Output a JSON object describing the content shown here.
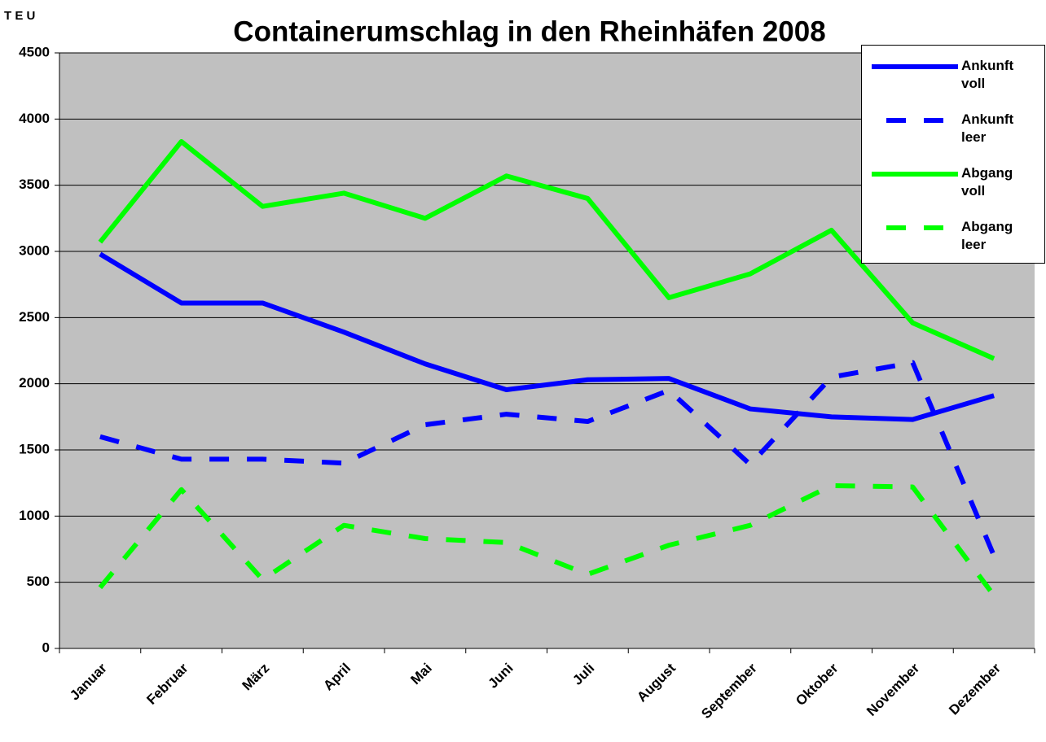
{
  "chart_data": {
    "type": "line",
    "title": "Containerumschlag in den Rheinhäfen 2008",
    "y_label": "T E U",
    "categories": [
      "Januar",
      "Februar",
      "März",
      "April",
      "Mai",
      "Juni",
      "Juli",
      "August",
      "September",
      "Oktober",
      "November",
      "Dezember"
    ],
    "series": [
      {
        "name": "Ankunft voll",
        "color": "#0000ff",
        "style": "solid",
        "values": [
          2980,
          2610,
          2610,
          2390,
          2150,
          1955,
          2030,
          2040,
          1810,
          1750,
          1730,
          1910
        ]
      },
      {
        "name": "Ankunft leer",
        "color": "#0000ff",
        "style": "dashed",
        "values": [
          1600,
          1430,
          1430,
          1400,
          1690,
          1770,
          1715,
          1950,
          1390,
          2050,
          2160,
          700
        ]
      },
      {
        "name": "Abgang voll",
        "color": "#00ff00",
        "style": "solid",
        "values": [
          3070,
          3830,
          3340,
          3440,
          3250,
          3570,
          3400,
          2650,
          2830,
          3160,
          2460,
          2190
        ]
      },
      {
        "name": "Abgang leer",
        "color": "#00ff00",
        "style": "dashed",
        "values": [
          460,
          1200,
          520,
          930,
          830,
          800,
          560,
          780,
          930,
          1230,
          1220,
          400
        ]
      }
    ],
    "ylim": [
      0,
      4500
    ],
    "yticks": [
      0,
      500,
      1000,
      1500,
      2000,
      2500,
      3000,
      3500,
      4000,
      4500
    ],
    "grid": true,
    "plot_background": "#c0c0c0",
    "legend": "upper right"
  }
}
